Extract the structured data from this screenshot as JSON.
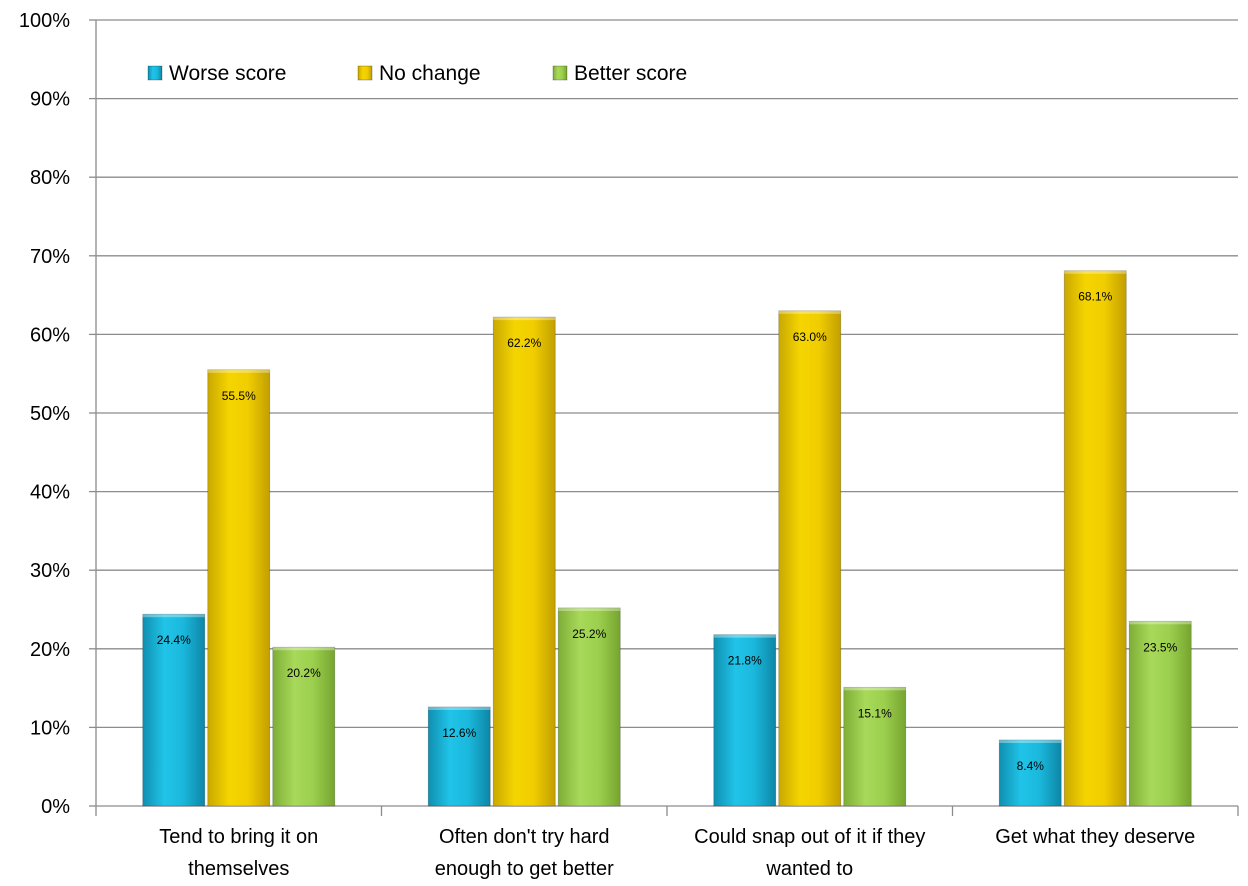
{
  "chart_data": {
    "type": "bar",
    "title": "",
    "xlabel": "",
    "ylabel": "",
    "ylim": [
      0,
      100
    ],
    "yticks": [
      "0%",
      "10%",
      "20%",
      "30%",
      "40%",
      "50%",
      "60%",
      "70%",
      "80%",
      "90%",
      "100%"
    ],
    "grid": true,
    "legend_position": "top-left",
    "categories": [
      [
        "Tend to bring it on",
        "themselves"
      ],
      [
        "Often don't try hard",
        "enough to get better"
      ],
      [
        "Could snap out of it if they",
        "wanted to"
      ],
      [
        "Get what they deserve"
      ]
    ],
    "series": [
      {
        "name": "Worse score",
        "color": "#1ab8dc",
        "values": [
          24.4,
          12.6,
          21.8,
          8.4
        ],
        "labels": [
          "24.4%",
          "12.6%",
          "21.8%",
          "8.4%"
        ]
      },
      {
        "name": "No change",
        "color": "#f0cd00",
        "values": [
          55.5,
          62.2,
          63.0,
          68.1
        ],
        "labels": [
          "55.5%",
          "62.2%",
          "63.0%",
          "68.1%"
        ]
      },
      {
        "name": "Better score",
        "color": "#9ccf4e",
        "values": [
          20.2,
          25.2,
          15.1,
          23.5
        ],
        "labels": [
          "20.2%",
          "25.2%",
          "15.1%",
          "23.5%"
        ]
      }
    ]
  }
}
